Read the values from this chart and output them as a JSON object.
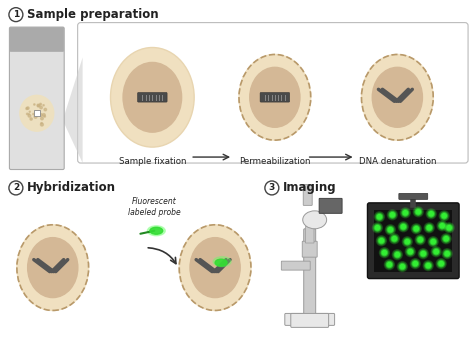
{
  "bg_color": "#ffffff",
  "section1_title": "Sample preparation",
  "section2_title": "Hybridization",
  "section3_title": "Imaging",
  "label1": "Sample fixation",
  "label2": "Permeabilization",
  "label3": "DNA denaturation",
  "probe_label": "Fluorescent\nlabeled probe",
  "cell_outer_light": "#f0e0c0",
  "cell_outer_mid": "#e8d5b0",
  "cell_inner_color": "#d4b896",
  "cell_dashed_color": "#b8996a",
  "dna_color": "#555555",
  "probe_color": "#33dd33",
  "probe_glow": "#66ff66",
  "monitor_bg": "#111111",
  "monitor_frame": "#2a2a2a",
  "dot_color": "#33ee33",
  "text_color": "#222222",
  "arrow_color": "#333333",
  "number_circle_edge": "#444444",
  "slide_color": "#d8d8d8",
  "slide_top": "#aaaaaa",
  "slide_edge": "#aaaaaa",
  "tri_color": "#d0d0d0",
  "box_edge": "#bbbbbb",
  "mic_light": "#e8e8e8",
  "mic_mid": "#cccccc",
  "mic_dark": "#999999"
}
